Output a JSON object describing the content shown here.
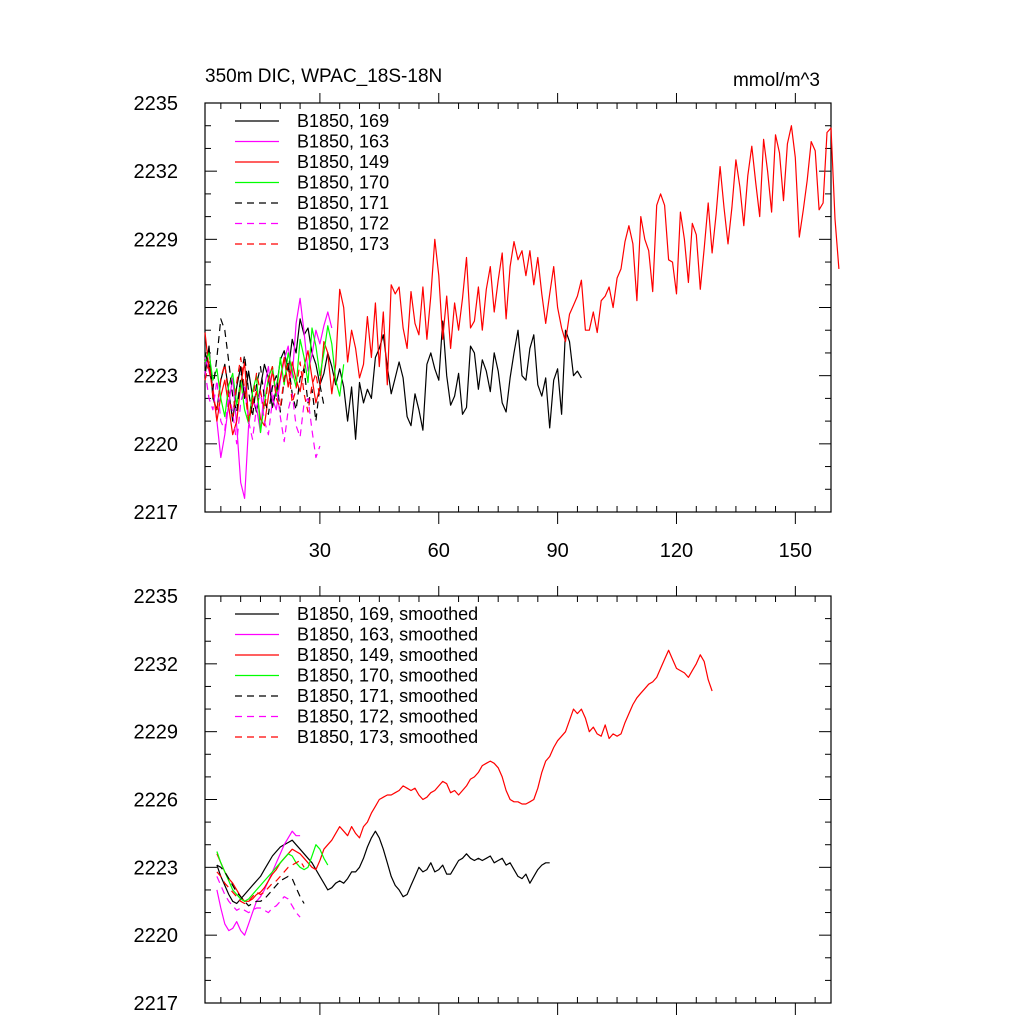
{
  "figure": {
    "title_left": "350m DIC, WPAC_18S-18N",
    "title_right": "mmol/m^3"
  },
  "chart_data": [
    {
      "type": "line",
      "title": "350m DIC, WPAC_18S-18N",
      "units": "mmol/m^3",
      "xlim": [
        1,
        159
      ],
      "ylim": [
        2217,
        2235
      ],
      "xticks": [
        30,
        60,
        90,
        120,
        150
      ],
      "yticks": [
        2217,
        2220,
        2223,
        2226,
        2229,
        2232,
        2235
      ],
      "grid": false,
      "legend": "top-left",
      "series": [
        {
          "name": "B1850, 169",
          "color": "#000000",
          "dash": "solid",
          "x_start": 1,
          "values": [
            2223.0,
            2224.3,
            2222.0,
            2221.5,
            2222.8,
            2223.5,
            2222.3,
            2221.0,
            2222.5,
            2223.4,
            2222.0,
            2223.2,
            2222.1,
            2221.4,
            2222.5,
            2223.5,
            2222.9,
            2221.6,
            2222.4,
            2223.7,
            2224.1,
            2223.2,
            2224.6,
            2224.0,
            2225.5,
            2224.8,
            2225.1,
            2224.0,
            2223.5,
            2222.6,
            2223.1,
            2224.0,
            2223.4,
            2222.6,
            2223.3,
            2222.5,
            2221.0,
            2222.5,
            2220.2,
            2222.7,
            2221.8,
            2222.4,
            2222.0,
            2223.8,
            2224.2,
            2224.8,
            2223.4,
            2222.2,
            2222.9,
            2223.6,
            2222.9,
            2221.2,
            2220.8,
            2222.2,
            2221.5,
            2220.6,
            2223.5,
            2224.0,
            2223.3,
            2222.8,
            2225.4,
            2223.0,
            2221.7,
            2222.1,
            2223.1,
            2221.3,
            2221.6,
            2224.3,
            2224.0,
            2222.4,
            2223.7,
            2223.2,
            2222.3,
            2224.0,
            2223.2,
            2221.8,
            2221.4,
            2222.9,
            2224.0,
            2225.0,
            2223.0,
            2222.8,
            2224.2,
            2224.8,
            2222.6,
            2222.1,
            2222.9,
            2220.7,
            2222.8,
            2223.3,
            2221.3,
            2225.0,
            2224.5,
            2223.0,
            2223.2,
            2222.9
          ]
        },
        {
          "name": "B1850, 163",
          "color": "#ff00ff",
          "dash": "solid",
          "x_start": 1,
          "values": [
            2223.8,
            2223.2,
            2222.5,
            2221.0,
            2219.4,
            2220.4,
            2221.8,
            2222.9,
            2220.8,
            2218.3,
            2217.6,
            2220.8,
            2221.9,
            2221.6,
            2220.5,
            2222.5,
            2223.4,
            2222.0,
            2221.5,
            2222.8,
            2223.7,
            2224.3,
            2222.9,
            2225.3,
            2226.4,
            2224.9,
            2223.2,
            2223.9,
            2225.0,
            2224.4,
            2225.2,
            2225.8,
            2225.1
          ]
        },
        {
          "name": "B1850, 149",
          "color": "#ff0000",
          "dash": "solid",
          "x_start": 1,
          "values": [
            2224.9,
            2223.3,
            2222.4,
            2221.0,
            2222.1,
            2222.8,
            2221.6,
            2220.4,
            2221.0,
            2222.6,
            2223.6,
            2221.0,
            2221.7,
            2222.3,
            2221.1,
            2220.8,
            2222.1,
            2223.2,
            2222.1,
            2222.9,
            2223.8,
            2222.5,
            2223.6,
            2222.8,
            2222.3,
            2223.4,
            2224.1,
            2222.9,
            2221.8,
            2222.5,
            2224.5,
            2224.0,
            2222.2,
            2223.5,
            2226.8,
            2226.0,
            2223.6,
            2225.0,
            2224.2,
            2222.9,
            2223.5,
            2225.6,
            2223.8,
            2226.2,
            2223.4,
            2225.8,
            2222.6,
            2227.0,
            2226.6,
            2226.9,
            2225.1,
            2224.2,
            2226.7,
            2225.3,
            2224.8,
            2226.9,
            2224.6,
            2226.5,
            2229.0,
            2227.4,
            2224.6,
            2226.5,
            2224.2,
            2226.2,
            2225.0,
            2226.4,
            2228.2,
            2225.1,
            2225.4,
            2226.9,
            2225.0,
            2226.8,
            2227.8,
            2225.8,
            2227.2,
            2228.4,
            2225.5,
            2227.8,
            2228.9,
            2228.1,
            2228.5,
            2227.4,
            2228.5,
            2227.0,
            2228.2,
            2226.6,
            2225.3,
            2226.6,
            2227.8,
            2226.0,
            2225.1,
            2224.5,
            2225.7,
            2226.1,
            2226.5,
            2227.2,
            2225.0,
            2225.0,
            2225.8,
            2224.9,
            2226.3,
            2226.5,
            2226.9,
            2226.0,
            2227.3,
            2227.7,
            2228.9,
            2229.6,
            2228.8,
            2226.3,
            2230.0,
            2229.0,
            2228.5,
            2226.7,
            2230.5,
            2231.0,
            2230.5,
            2228.1,
            2228.0,
            2226.6,
            2230.2,
            2229.0,
            2227.1,
            2229.7,
            2229.2,
            2226.8,
            2228.6,
            2230.6,
            2228.4,
            2230.1,
            2232.2,
            2230.4,
            2228.8,
            2230.4,
            2232.5,
            2231.3,
            2229.6,
            2231.8,
            2233.1,
            2231.5,
            2230.0,
            2233.4,
            2232.0,
            2230.2,
            2233.6,
            2232.8,
            2230.7,
            2233.2,
            2234.0,
            2232.6,
            2229.1,
            2230.3,
            2231.6,
            2233.3,
            2232.9,
            2230.3,
            2230.6,
            2233.7,
            2233.9,
            2229.9,
            2227.7
          ]
        },
        {
          "name": "B1850, 170",
          "color": "#00ff00",
          "dash": "solid",
          "x_start": 1,
          "values": [
            2223.6,
            2224.0,
            2222.8,
            2223.3,
            2222.0,
            2221.2,
            2222.6,
            2223.1,
            2221.7,
            2222.8,
            2221.5,
            2220.9,
            2222.3,
            2223.0,
            2220.5,
            2221.8,
            2222.9,
            2223.4,
            2222.1,
            2223.8,
            2222.6,
            2224.0,
            2223.2,
            2222.5,
            2224.6,
            2223.8,
            2222.7,
            2225.1,
            2224.3,
            2223.0,
            2224.0,
            2225.2,
            2224.4,
            2222.8,
            2222.1,
            2223.5
          ]
        },
        {
          "name": "B1850, 171",
          "color": "#000000",
          "dash": "dashed",
          "x_start": 1,
          "values": [
            2224.0,
            2223.5,
            2222.4,
            2223.8,
            2225.5,
            2225.0,
            2223.6,
            2222.1,
            2221.4,
            2222.9,
            2223.9,
            2222.3,
            2221.2,
            2222.6,
            2223.4,
            2222.0,
            2221.3,
            2222.5,
            2223.0,
            2221.4,
            2222.8,
            2223.6,
            2222.2,
            2221.5,
            2222.9,
            2223.3,
            2221.8,
            2222.4,
            2221.0,
            2222.6,
            2221.7
          ]
        },
        {
          "name": "B1850, 172",
          "color": "#ff00ff",
          "dash": "dashed",
          "x_start": 1,
          "values": [
            2223.2,
            2222.0,
            2221.5,
            2222.8,
            2221.0,
            2220.6,
            2222.2,
            2221.4,
            2220.0,
            2221.8,
            2222.5,
            2221.0,
            2220.2,
            2221.6,
            2222.3,
            2221.0,
            2220.4,
            2221.9,
            2222.6,
            2221.2,
            2220.1,
            2221.5,
            2222.2,
            2220.8,
            2220.3,
            2221.8,
            2222.0,
            2220.6,
            2219.4,
            2219.9
          ]
        },
        {
          "name": "B1850, 173",
          "color": "#ff0000",
          "dash": "dashed",
          "x_start": 1,
          "values": [
            2222.8,
            2223.6,
            2222.1,
            2221.4,
            2222.9,
            2223.5,
            2222.0,
            2221.2,
            2222.7,
            2223.8,
            2222.4,
            2221.0,
            2221.9,
            2223.1,
            2222.3,
            2221.5,
            2222.8,
            2223.4,
            2222.0,
            2221.6,
            2222.9,
            2223.5,
            2221.8,
            2222.4,
            2223.6,
            2222.2,
            2221.4,
            2222.6,
            2223.1,
            2222.0
          ]
        }
      ]
    },
    {
      "type": "line",
      "xlim": [
        1,
        159
      ],
      "ylim": [
        2217,
        2235
      ],
      "xticks": [
        30,
        60,
        90,
        120,
        150
      ],
      "yticks": [
        2217,
        2220,
        2223,
        2226,
        2229,
        2232,
        2235
      ],
      "grid": false,
      "legend": "top-left",
      "series": [
        {
          "name": "B1850, 169, smoothed",
          "color": "#000000",
          "dash": "solid",
          "x_start": 4,
          "values": [
            2223.1,
            2222.6,
            2222.2,
            2221.8,
            2221.5,
            2221.4,
            2221.6,
            2221.8,
            2222.0,
            2222.2,
            2222.4,
            2222.6,
            2222.9,
            2223.2,
            2223.5,
            2223.7,
            2223.9,
            2224.0,
            2224.1,
            2224.2,
            2224.0,
            2223.8,
            2223.6,
            2223.4,
            2223.2,
            2222.9,
            2222.6,
            2222.3,
            2222.0,
            2222.1,
            2222.3,
            2222.4,
            2222.3,
            2222.5,
            2222.8,
            2222.8,
            2223.0,
            2223.4,
            2223.9,
            2224.3,
            2224.6,
            2224.3,
            2223.8,
            2223.2,
            2222.6,
            2222.2,
            2222.0,
            2221.7,
            2221.8,
            2222.2,
            2222.6,
            2223.0,
            2222.8,
            2222.9,
            2223.2,
            2222.8,
            2222.9,
            2223.1,
            2222.7,
            2222.7,
            2223.0,
            2223.3,
            2223.4,
            2223.6,
            2223.4,
            2223.3,
            2223.4,
            2223.3,
            2223.4,
            2223.5,
            2223.2,
            2223.3,
            2223.4,
            2223.1,
            2223.2,
            2222.9,
            2222.6,
            2222.5,
            2222.7,
            2222.3,
            2222.6,
            2222.9,
            2223.1,
            2223.2,
            2223.2
          ]
        },
        {
          "name": "B1850, 163, smoothed",
          "color": "#ff00ff",
          "dash": "solid",
          "x_start": 4,
          "values": [
            2222.0,
            2221.2,
            2220.5,
            2220.2,
            2220.3,
            2220.6,
            2220.2,
            2220.0,
            2220.5,
            2221.0,
            2221.5,
            2221.7,
            2222.0,
            2222.4,
            2222.8,
            2223.2,
            2223.6,
            2224.0,
            2224.3,
            2224.6,
            2224.4,
            2224.4
          ]
        },
        {
          "name": "B1850, 149, smoothed",
          "color": "#ff0000",
          "dash": "solid",
          "x_start": 4,
          "values": [
            2223.6,
            2223.2,
            2222.8,
            2222.5,
            2222.3,
            2222.0,
            2221.7,
            2221.5,
            2221.5,
            2221.6,
            2221.8,
            2221.9,
            2222.1,
            2222.4,
            2222.7,
            2222.9,
            2223.2,
            2223.4,
            2223.6,
            2223.8,
            2223.7,
            2223.6,
            2223.4,
            2223.2,
            2223.0,
            2222.9,
            2223.3,
            2223.8,
            2224.0,
            2224.2,
            2224.5,
            2224.8,
            2224.6,
            2224.4,
            2224.8,
            2224.5,
            2224.3,
            2224.8,
            2225.0,
            2225.4,
            2225.7,
            2226.0,
            2226.1,
            2226.2,
            2226.2,
            2226.3,
            2226.4,
            2226.6,
            2226.5,
            2226.4,
            2226.5,
            2226.2,
            2226.0,
            2226.1,
            2226.3,
            2226.4,
            2226.6,
            2226.8,
            2226.7,
            2226.3,
            2226.4,
            2226.2,
            2226.4,
            2226.6,
            2226.9,
            2227.0,
            2227.2,
            2227.5,
            2227.6,
            2227.7,
            2227.6,
            2227.4,
            2227.0,
            2226.4,
            2226.0,
            2225.9,
            2225.9,
            2225.8,
            2225.8,
            2225.9,
            2226.0,
            2226.5,
            2227.2,
            2227.7,
            2227.9,
            2228.3,
            2228.6,
            2228.8,
            2229.0,
            2229.5,
            2230.0,
            2229.8,
            2230.0,
            2229.6,
            2229.0,
            2229.2,
            2228.9,
            2228.8,
            2229.3,
            2228.7,
            2228.9,
            2228.8,
            2228.9,
            2229.4,
            2229.8,
            2230.2,
            2230.5,
            2230.7,
            2230.9,
            2231.1,
            2231.2,
            2231.4,
            2231.8,
            2232.2,
            2232.6,
            2232.2,
            2231.8,
            2231.7,
            2231.6,
            2231.4,
            2231.7,
            2232.0,
            2232.4,
            2232.1,
            2231.3,
            2230.8
          ]
        },
        {
          "name": "B1850, 170, smoothed",
          "color": "#00ff00",
          "dash": "solid",
          "x_start": 4,
          "values": [
            2223.7,
            2223.2,
            2222.8,
            2222.4,
            2222.0,
            2221.8,
            2221.6,
            2221.5,
            2221.6,
            2221.8,
            2222.0,
            2222.2,
            2222.4,
            2222.6,
            2222.8,
            2223.0,
            2223.2,
            2223.4,
            2223.6,
            2223.5,
            2223.2,
            2223.0,
            2222.9,
            2223.0,
            2223.5,
            2224.0,
            2223.8,
            2223.4,
            2223.1
          ]
        },
        {
          "name": "B1850, 171, smoothed",
          "color": "#000000",
          "dash": "dashed",
          "x_start": 4,
          "values": [
            2223.1,
            2223.0,
            2222.8,
            2222.5,
            2222.2,
            2221.9,
            2221.7,
            2221.5,
            2221.3,
            2221.4,
            2221.5,
            2221.5,
            2221.6,
            2221.8,
            2222.0,
            2222.2,
            2222.4,
            2222.5,
            2222.6,
            2222.5,
            2222.1,
            2221.7,
            2221.4
          ]
        },
        {
          "name": "B1850, 172, smoothed",
          "color": "#ff00ff",
          "dash": "dashed",
          "x_start": 4,
          "values": [
            2222.6,
            2222.2,
            2221.8,
            2221.5,
            2221.3,
            2221.1,
            2221.2,
            2221.1,
            2221.0,
            2221.1,
            2221.2,
            2221.2,
            2221.1,
            2221.0,
            2221.2,
            2221.3,
            2221.5,
            2221.7,
            2221.6,
            2221.3,
            2221.0,
            2220.8
          ]
        },
        {
          "name": "B1850, 173, smoothed",
          "color": "#ff0000",
          "dash": "dashed",
          "x_start": 4,
          "values": [
            2222.8,
            2222.6,
            2222.3,
            2222.1,
            2221.9,
            2221.7,
            2221.5,
            2221.4,
            2221.5,
            2221.7,
            2221.9,
            2221.8,
            2221.9,
            2222.1,
            2222.3,
            2222.4,
            2222.6,
            2222.8,
            2223.0,
            2223.1,
            2223.2,
            2223.3,
            2223.0
          ]
        }
      ]
    }
  ]
}
